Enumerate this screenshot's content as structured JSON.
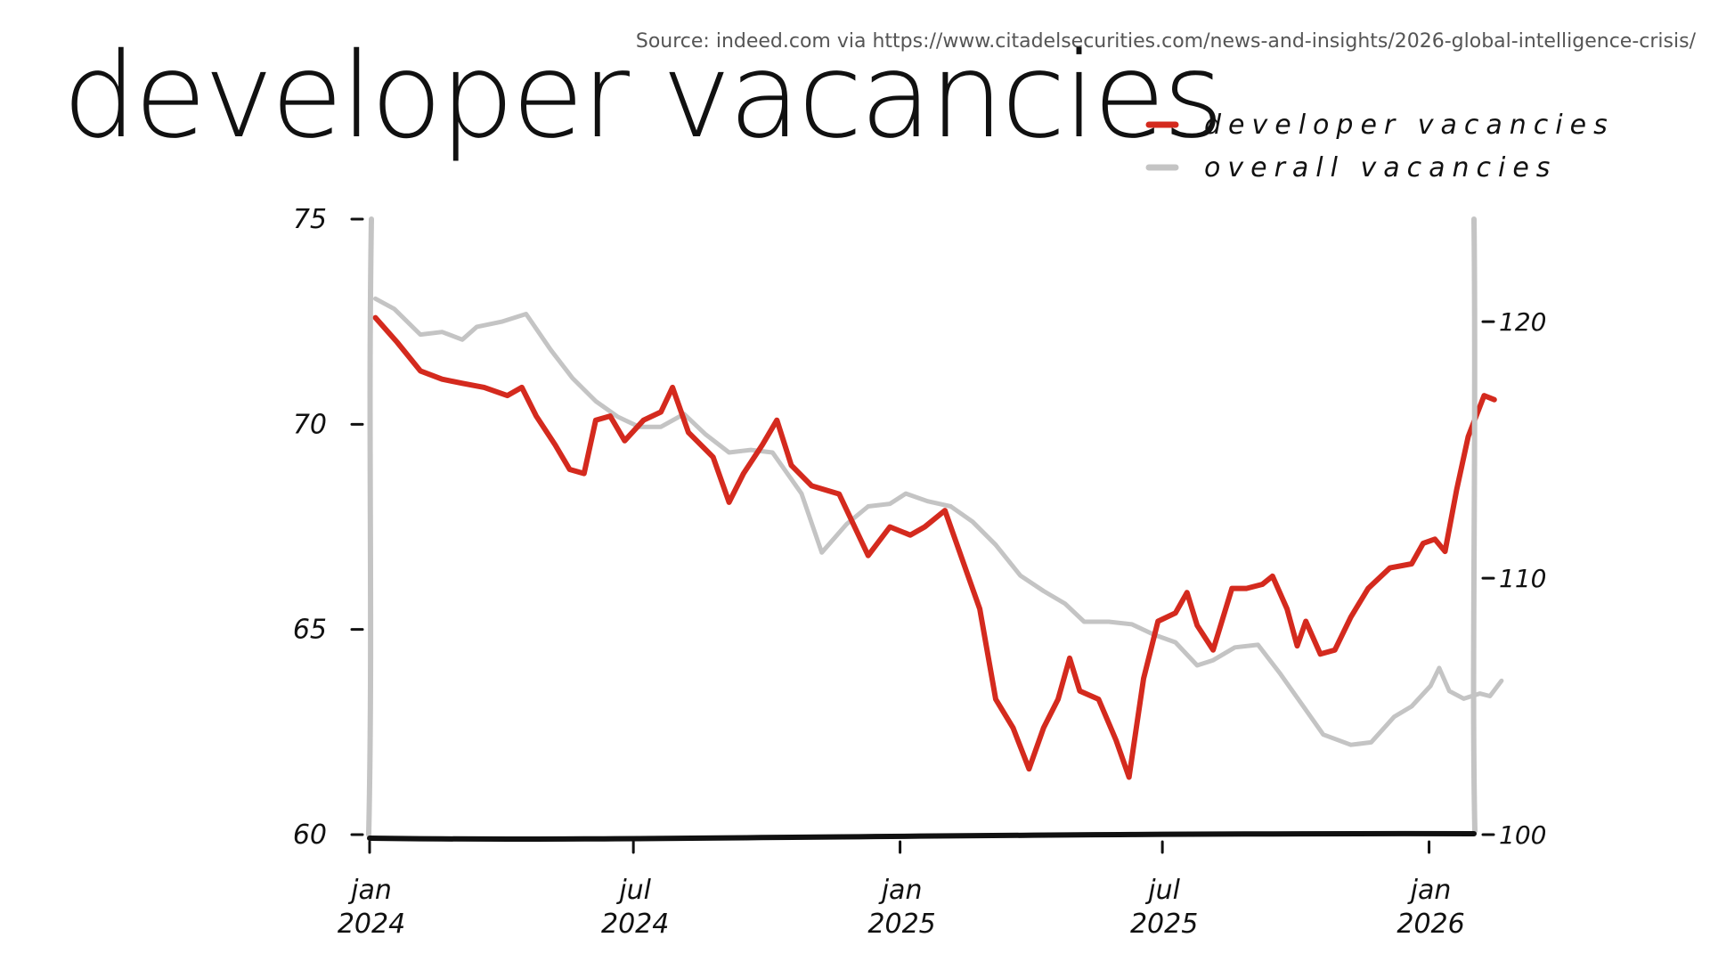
{
  "source": "Source: indeed.com via https://www.citadelsecurities.com/news-and-insights/2026-global-intelligence-crisis/",
  "title": "developer vacancies",
  "colors": {
    "developer": "#d42a1e",
    "overall": "#c4c4c4",
    "axis": "#111111"
  },
  "chart_data": {
    "type": "line",
    "title": "developer vacancies",
    "legend_position": "top-right",
    "grid": false,
    "x_axis": {
      "range": [
        "2024-01",
        "2026-02"
      ],
      "ticks": [
        {
          "x": "2024-01",
          "line1": "jan",
          "line2": "2024"
        },
        {
          "x": "2024-07",
          "line1": "jul",
          "line2": "2024"
        },
        {
          "x": "2025-01",
          "line1": "jan",
          "line2": "2025"
        },
        {
          "x": "2025-07",
          "line1": "jul",
          "line2": "2025"
        },
        {
          "x": "2026-01",
          "line1": "jan",
          "line2": "2026"
        }
      ]
    },
    "y_left": {
      "range": [
        60,
        75
      ],
      "ticks": [
        {
          "v": 60,
          "label": "60"
        },
        {
          "v": 65,
          "label": "65"
        },
        {
          "v": 70,
          "label": "70"
        },
        {
          "v": 75,
          "label": "75"
        }
      ]
    },
    "y_right": {
      "range": [
        100,
        124
      ],
      "ticks": [
        {
          "v": 100,
          "label": "100"
        },
        {
          "v": 110,
          "label": "110"
        },
        {
          "v": 120,
          "label": "120"
        }
      ]
    },
    "series": [
      {
        "name": "developer vacancies",
        "axis": "left",
        "points": [
          [
            "2024-01-05",
            72.6
          ],
          [
            "2024-01-20",
            72.0
          ],
          [
            "2024-02-05",
            71.3
          ],
          [
            "2024-02-20",
            71.1
          ],
          [
            "2024-03-05",
            71.0
          ],
          [
            "2024-03-20",
            70.9
          ],
          [
            "2024-04-05",
            70.7
          ],
          [
            "2024-04-15",
            70.9
          ],
          [
            "2024-04-25",
            70.2
          ],
          [
            "2024-05-08",
            69.5
          ],
          [
            "2024-05-18",
            68.9
          ],
          [
            "2024-05-28",
            68.8
          ],
          [
            "2024-06-05",
            70.1
          ],
          [
            "2024-06-15",
            70.2
          ],
          [
            "2024-06-25",
            69.6
          ],
          [
            "2024-07-08",
            70.1
          ],
          [
            "2024-07-20",
            70.3
          ],
          [
            "2024-07-28",
            70.9
          ],
          [
            "2024-08-08",
            69.8
          ],
          [
            "2024-08-25",
            69.2
          ],
          [
            "2024-09-05",
            68.1
          ],
          [
            "2024-09-15",
            68.8
          ],
          [
            "2024-09-28",
            69.5
          ],
          [
            "2024-10-08",
            70.1
          ],
          [
            "2024-10-18",
            69.0
          ],
          [
            "2024-11-01",
            68.5
          ],
          [
            "2024-11-20",
            68.3
          ],
          [
            "2024-12-10",
            66.8
          ],
          [
            "2024-12-25",
            67.5
          ],
          [
            "2025-01-08",
            67.3
          ],
          [
            "2025-01-18",
            67.5
          ],
          [
            "2025-02-01",
            67.9
          ],
          [
            "2025-02-15",
            66.5
          ],
          [
            "2025-02-25",
            65.5
          ],
          [
            "2025-03-08",
            63.3
          ],
          [
            "2025-03-20",
            62.6
          ],
          [
            "2025-03-31",
            61.6
          ],
          [
            "2025-04-10",
            62.6
          ],
          [
            "2025-04-20",
            63.3
          ],
          [
            "2025-04-28",
            64.3
          ],
          [
            "2025-05-05",
            63.5
          ],
          [
            "2025-05-18",
            63.3
          ],
          [
            "2025-05-30",
            62.3
          ],
          [
            "2025-06-08",
            61.4
          ],
          [
            "2025-06-18",
            63.8
          ],
          [
            "2025-06-28",
            65.2
          ],
          [
            "2025-07-10",
            65.4
          ],
          [
            "2025-07-18",
            65.9
          ],
          [
            "2025-07-25",
            65.1
          ],
          [
            "2025-08-05",
            64.5
          ],
          [
            "2025-08-18",
            66.0
          ],
          [
            "2025-08-28",
            66.0
          ],
          [
            "2025-09-08",
            66.1
          ],
          [
            "2025-09-15",
            66.3
          ],
          [
            "2025-09-25",
            65.5
          ],
          [
            "2025-10-02",
            64.6
          ],
          [
            "2025-10-08",
            65.2
          ],
          [
            "2025-10-18",
            64.4
          ],
          [
            "2025-10-28",
            64.5
          ],
          [
            "2025-11-08",
            65.3
          ],
          [
            "2025-11-20",
            66.0
          ],
          [
            "2025-12-05",
            66.5
          ],
          [
            "2025-12-20",
            66.6
          ],
          [
            "2025-12-28",
            67.1
          ],
          [
            "2026-01-05",
            67.2
          ],
          [
            "2026-01-12",
            66.9
          ],
          [
            "2026-01-20",
            68.4
          ],
          [
            "2026-01-28",
            69.7
          ],
          [
            "2026-02-08",
            70.7
          ],
          [
            "2026-02-15",
            70.6
          ]
        ]
      },
      {
        "name": "overall vacancies",
        "axis": "right",
        "points": [
          [
            "2024-01-05",
            120.9
          ],
          [
            "2024-01-18",
            120.5
          ],
          [
            "2024-02-05",
            119.5
          ],
          [
            "2024-02-20",
            119.6
          ],
          [
            "2024-03-05",
            119.3
          ],
          [
            "2024-03-15",
            119.8
          ],
          [
            "2024-04-01",
            120.0
          ],
          [
            "2024-04-18",
            120.3
          ],
          [
            "2024-05-05",
            118.9
          ],
          [
            "2024-05-20",
            117.8
          ],
          [
            "2024-06-05",
            116.9
          ],
          [
            "2024-06-20",
            116.3
          ],
          [
            "2024-07-05",
            115.9
          ],
          [
            "2024-07-20",
            115.9
          ],
          [
            "2024-08-05",
            116.4
          ],
          [
            "2024-08-20",
            115.6
          ],
          [
            "2024-09-05",
            114.9
          ],
          [
            "2024-09-20",
            115.0
          ],
          [
            "2024-10-05",
            114.9
          ],
          [
            "2024-10-25",
            113.3
          ],
          [
            "2024-11-08",
            111.0
          ],
          [
            "2024-11-25",
            112.1
          ],
          [
            "2024-12-10",
            112.8
          ],
          [
            "2024-12-25",
            112.9
          ],
          [
            "2025-01-05",
            113.3
          ],
          [
            "2025-01-20",
            113.0
          ],
          [
            "2025-02-05",
            112.8
          ],
          [
            "2025-02-20",
            112.2
          ],
          [
            "2025-03-08",
            111.3
          ],
          [
            "2025-03-25",
            110.1
          ],
          [
            "2025-04-10",
            109.5
          ],
          [
            "2025-04-25",
            109.0
          ],
          [
            "2025-05-08",
            108.3
          ],
          [
            "2025-05-25",
            108.3
          ],
          [
            "2025-06-10",
            108.2
          ],
          [
            "2025-06-25",
            107.8
          ],
          [
            "2025-07-10",
            107.5
          ],
          [
            "2025-07-25",
            106.6
          ],
          [
            "2025-08-05",
            106.8
          ],
          [
            "2025-08-20",
            107.3
          ],
          [
            "2025-09-05",
            107.4
          ],
          [
            "2025-09-20",
            106.3
          ],
          [
            "2025-10-05",
            105.1
          ],
          [
            "2025-10-20",
            103.9
          ],
          [
            "2025-11-08",
            103.5
          ],
          [
            "2025-11-22",
            103.6
          ],
          [
            "2025-12-08",
            104.6
          ],
          [
            "2025-12-20",
            105.0
          ],
          [
            "2026-01-02",
            105.8
          ],
          [
            "2026-01-08",
            106.5
          ],
          [
            "2026-01-15",
            105.6
          ],
          [
            "2026-01-25",
            105.3
          ],
          [
            "2026-02-05",
            105.5
          ],
          [
            "2026-02-12",
            105.4
          ],
          [
            "2026-02-20",
            106.0
          ]
        ]
      }
    ],
    "legend": [
      {
        "label": "developer vacancies",
        "series": 0
      },
      {
        "label": "overall vacancies",
        "series": 1
      }
    ]
  }
}
